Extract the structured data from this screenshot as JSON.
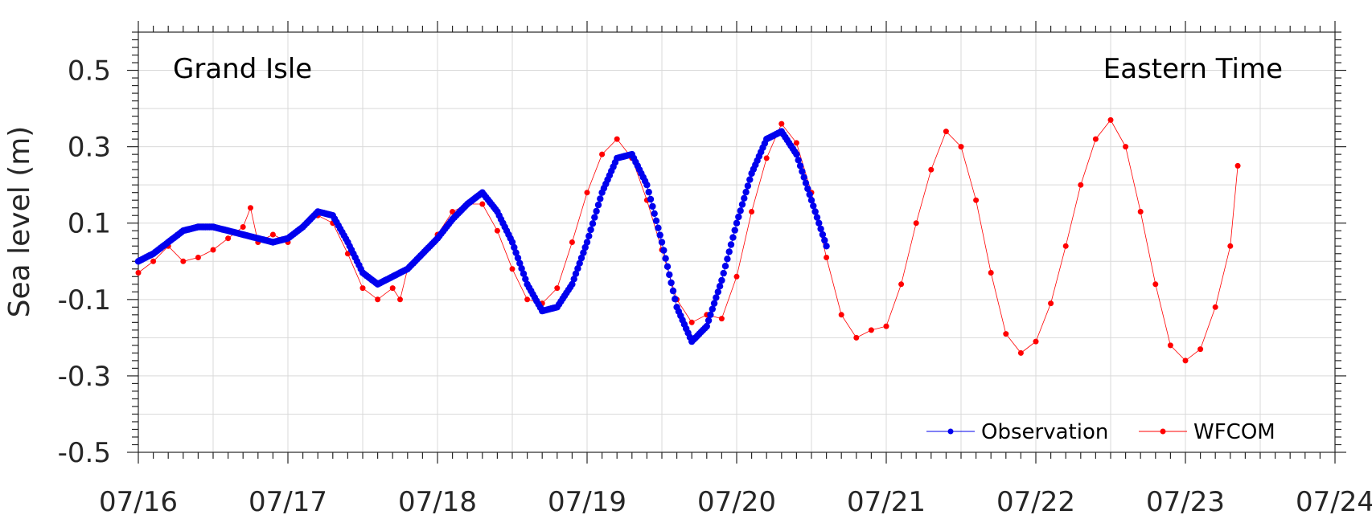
{
  "chart_data": {
    "type": "line",
    "title": "",
    "xlabel": "",
    "ylabel": "Sea level (m)",
    "annotations": {
      "station": "Grand Isle",
      "timezone": "Eastern Time"
    },
    "x_ticks": [
      "07/16",
      "07/17",
      "07/18",
      "07/19",
      "07/20",
      "07/21",
      "07/22",
      "07/23",
      "07/24"
    ],
    "y_ticks": [
      "0.5",
      "0.3",
      "0.1",
      "-0.1",
      "-0.3",
      "-0.5"
    ],
    "y_tick_values": [
      0.5,
      0.3,
      0.1,
      -0.1,
      -0.3,
      -0.5
    ],
    "xlim_days": [
      0,
      8
    ],
    "x_date_start": "07/16",
    "ylim": [
      -0.5,
      0.6
    ],
    "grid": true,
    "legend": {
      "placement": "bottom-right",
      "entries": [
        "Observation",
        "WFCOM"
      ]
    },
    "colors": {
      "observation": "#0000ee",
      "wfcom": "#ff0000",
      "grid": "#d9d9d9",
      "axis": "#262626"
    },
    "series": [
      {
        "name": "Observation",
        "x_days": [
          0.0,
          0.1,
          0.2,
          0.3,
          0.4,
          0.5,
          0.6,
          0.7,
          0.8,
          0.9,
          1.0,
          1.1,
          1.2,
          1.3,
          1.4,
          1.5,
          1.6,
          1.7,
          1.8,
          1.9,
          2.0,
          2.1,
          2.2,
          2.3,
          2.4,
          2.5,
          2.6,
          2.7,
          2.8,
          2.9,
          3.0,
          3.1,
          3.2,
          3.3,
          3.4,
          3.5,
          3.6,
          3.7,
          3.8,
          3.9,
          4.0,
          4.1,
          4.2,
          4.3,
          4.4,
          4.5,
          4.6
        ],
        "y": [
          0.0,
          0.02,
          0.05,
          0.08,
          0.09,
          0.09,
          0.08,
          0.07,
          0.06,
          0.05,
          0.06,
          0.09,
          0.13,
          0.12,
          0.05,
          -0.03,
          -0.06,
          -0.04,
          -0.02,
          0.02,
          0.06,
          0.11,
          0.15,
          0.18,
          0.13,
          0.05,
          -0.06,
          -0.13,
          -0.12,
          -0.06,
          0.05,
          0.18,
          0.27,
          0.28,
          0.2,
          0.05,
          -0.12,
          -0.21,
          -0.17,
          -0.05,
          0.1,
          0.23,
          0.32,
          0.34,
          0.28,
          0.16,
          0.04
        ]
      },
      {
        "name": "WFCOM",
        "x_days": [
          0.0,
          0.1,
          0.2,
          0.3,
          0.4,
          0.5,
          0.6,
          0.7,
          0.75,
          0.8,
          0.9,
          1.0,
          1.1,
          1.2,
          1.3,
          1.4,
          1.5,
          1.6,
          1.7,
          1.75,
          1.8,
          1.9,
          2.0,
          2.1,
          2.2,
          2.3,
          2.4,
          2.5,
          2.6,
          2.7,
          2.8,
          2.9,
          3.0,
          3.1,
          3.2,
          3.3,
          3.4,
          3.5,
          3.6,
          3.7,
          3.8,
          3.9,
          4.0,
          4.1,
          4.2,
          4.3,
          4.4,
          4.5,
          4.6,
          4.7,
          4.8,
          4.9,
          5.0,
          5.1,
          5.2,
          5.3,
          5.4,
          5.5,
          5.6,
          5.7,
          5.8,
          5.9,
          6.0,
          6.1,
          6.2,
          6.3,
          6.4,
          6.5,
          6.6,
          6.7,
          6.8,
          6.9,
          7.0,
          7.1,
          7.2,
          7.3,
          7.35
        ],
        "y": [
          -0.03,
          0.0,
          0.04,
          0.0,
          0.01,
          0.03,
          0.06,
          0.09,
          0.14,
          0.05,
          0.07,
          0.05,
          0.09,
          0.12,
          0.1,
          0.02,
          -0.07,
          -0.1,
          -0.07,
          -0.1,
          -0.02,
          0.02,
          0.07,
          0.13,
          0.15,
          0.15,
          0.08,
          -0.02,
          -0.1,
          -0.11,
          -0.07,
          0.05,
          0.18,
          0.28,
          0.32,
          0.27,
          0.16,
          0.03,
          -0.1,
          -0.16,
          -0.14,
          -0.15,
          -0.04,
          0.13,
          0.27,
          0.36,
          0.31,
          0.18,
          0.01,
          -0.14,
          -0.2,
          -0.18,
          -0.17,
          -0.06,
          0.1,
          0.24,
          0.34,
          0.3,
          0.16,
          -0.03,
          -0.19,
          -0.24,
          -0.21,
          -0.11,
          0.04,
          0.2,
          0.32,
          0.37,
          0.3,
          0.13,
          -0.06,
          -0.22,
          -0.26,
          -0.23,
          -0.12,
          0.04,
          0.25
        ]
      }
    ]
  }
}
